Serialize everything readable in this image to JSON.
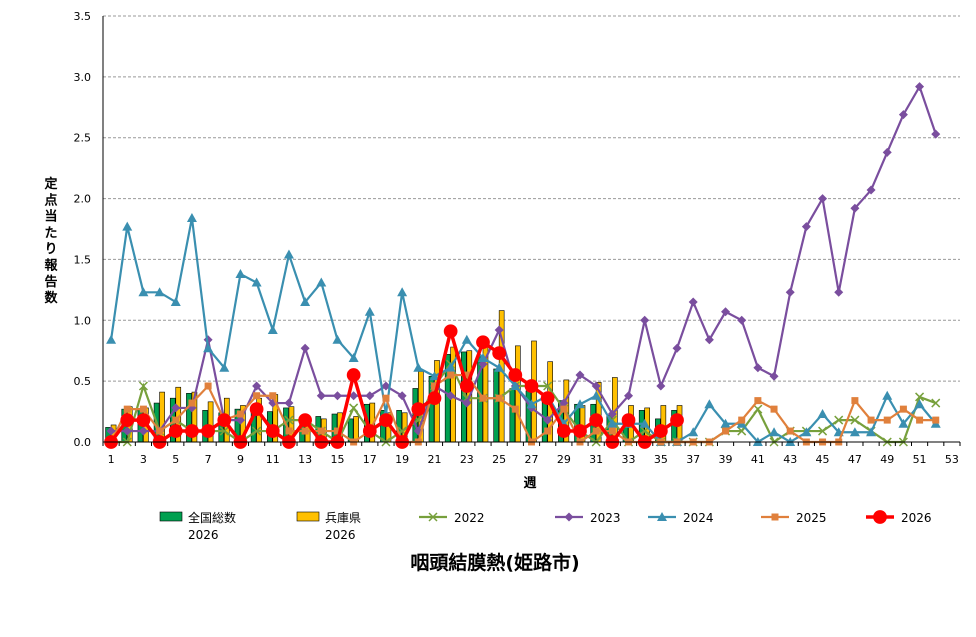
{
  "chart_data": {
    "type": "bar",
    "title": "咽頭結膜熱(姫路市)",
    "xlabel": "週",
    "ylabel": "定点当たり報告数",
    "ylim": [
      0,
      3.5
    ],
    "yticks": [
      "0.0",
      "0.5",
      "1.0",
      "1.5",
      "2.0",
      "2.5",
      "3.0",
      "3.5"
    ],
    "xticks": [
      1,
      3,
      5,
      7,
      9,
      11,
      13,
      15,
      17,
      19,
      21,
      23,
      25,
      27,
      29,
      31,
      33,
      35,
      37,
      39,
      41,
      43,
      45,
      47,
      49,
      51,
      53
    ],
    "grid": true,
    "legend_position": "bottom",
    "bars": [
      {
        "name_lines": [
          "全国総数",
          "2026"
        ],
        "color": "#00a050",
        "values": [
          0.12,
          0.27,
          0.27,
          0.32,
          0.36,
          0.4,
          0.26,
          0.24,
          0.27,
          0.29,
          0.25,
          0.28,
          0.19,
          0.21,
          0.23,
          0.19,
          0.31,
          0.26,
          0.26,
          0.44,
          0.54,
          0.72,
          0.74,
          0.7,
          0.6,
          0.44,
          0.42,
          0.35,
          0.34,
          0.31,
          0.31,
          0.22,
          0.18,
          0.26,
          0.19,
          0.26
        ]
      },
      {
        "name_lines": [
          "兵庫県",
          "2026"
        ],
        "color": "#ffc000",
        "values": [
          0.14,
          0.29,
          0.28,
          0.41,
          0.45,
          0.41,
          0.33,
          0.36,
          0.3,
          0.36,
          0.39,
          0.29,
          0.2,
          0.19,
          0.24,
          0.21,
          0.32,
          0.24,
          0.24,
          0.58,
          0.67,
          0.78,
          0.75,
          0.78,
          1.08,
          0.79,
          0.83,
          0.66,
          0.51,
          0.3,
          0.49,
          0.53,
          0.3,
          0.28,
          0.3,
          0.3
        ]
      }
    ],
    "series": [
      {
        "name": "2022",
        "color": "#77a03c",
        "marker": "x",
        "values": [
          0.0,
          0.0,
          0.46,
          0.09,
          0.18,
          0.09,
          0.09,
          0.09,
          0.0,
          0.09,
          0.09,
          0.18,
          0.18,
          0.09,
          0.0,
          0.28,
          0.09,
          0.0,
          0.09,
          0.18,
          0.46,
          0.64,
          0.36,
          0.36,
          0.36,
          0.46,
          0.46,
          0.46,
          0.27,
          0.09,
          0.0,
          0.18,
          0.0,
          0.09,
          0.0,
          0.0,
          0.0,
          0.0,
          0.09,
          0.09,
          0.27,
          0.0,
          0.09,
          0.09,
          0.09,
          0.18,
          0.18,
          0.09,
          0.0,
          0.0,
          0.37,
          0.32
        ]
      },
      {
        "name": "2023",
        "color": "#7a4e9e",
        "marker": "diamond",
        "values": [
          0.09,
          0.09,
          0.09,
          0.09,
          0.28,
          0.28,
          0.84,
          0.18,
          0.18,
          0.46,
          0.32,
          0.32,
          0.77,
          0.38,
          0.38,
          0.38,
          0.38,
          0.46,
          0.38,
          0.09,
          0.46,
          0.38,
          0.32,
          0.64,
          0.92,
          0.46,
          0.28,
          0.18,
          0.32,
          0.55,
          0.46,
          0.23,
          0.38,
          1.0,
          0.46,
          0.77,
          1.15,
          0.84,
          1.07,
          1.0,
          0.61,
          0.54,
          1.23,
          1.77,
          2.0,
          1.23,
          1.92,
          2.07,
          2.38,
          2.69,
          2.92,
          2.53
        ]
      },
      {
        "name": "2024",
        "color": "#3a8fb0",
        "marker": "triangle",
        "values": [
          0.84,
          1.77,
          1.23,
          1.23,
          1.15,
          1.84,
          0.77,
          0.61,
          1.38,
          1.31,
          0.92,
          1.54,
          1.15,
          1.31,
          0.84,
          0.69,
          1.07,
          0.23,
          1.23,
          0.61,
          0.54,
          0.61,
          0.84,
          0.69,
          0.61,
          0.46,
          0.31,
          0.38,
          0.15,
          0.31,
          0.38,
          0.15,
          0.15,
          0.15,
          0.0,
          0.0,
          0.08,
          0.31,
          0.15,
          0.15,
          0.0,
          0.08,
          0.0,
          0.08,
          0.23,
          0.08,
          0.08,
          0.08,
          0.38,
          0.15,
          0.31,
          0.15
        ]
      },
      {
        "name": "2025",
        "color": "#e0803c",
        "marker": "square",
        "values": [
          0.0,
          0.27,
          0.27,
          0.09,
          0.18,
          0.32,
          0.46,
          0.18,
          0.23,
          0.38,
          0.38,
          0.09,
          0.09,
          0.09,
          0.09,
          0.0,
          0.09,
          0.36,
          0.0,
          0.0,
          0.46,
          0.55,
          0.55,
          0.36,
          0.36,
          0.27,
          0.0,
          0.09,
          0.27,
          0.0,
          0.09,
          0.09,
          0.0,
          0.0,
          0.0,
          0.0,
          0.0,
          0.0,
          0.09,
          0.18,
          0.34,
          0.27,
          0.09,
          0.0,
          0.0,
          0.0,
          0.34,
          0.18,
          0.18,
          0.27,
          0.18,
          0.18
        ]
      },
      {
        "name": "2026",
        "color": "#ff0000",
        "marker": "circle",
        "values": [
          0.0,
          0.18,
          0.18,
          0.0,
          0.09,
          0.09,
          0.09,
          0.18,
          0.0,
          0.27,
          0.09,
          0.0,
          0.18,
          0.0,
          0.0,
          0.55,
          0.09,
          0.18,
          0.0,
          0.27,
          0.36,
          0.91,
          0.46,
          0.82,
          0.73,
          0.55,
          0.46,
          0.36,
          0.09,
          0.09,
          0.18,
          0.0,
          0.18,
          0.0,
          0.09,
          0.18
        ]
      }
    ]
  }
}
